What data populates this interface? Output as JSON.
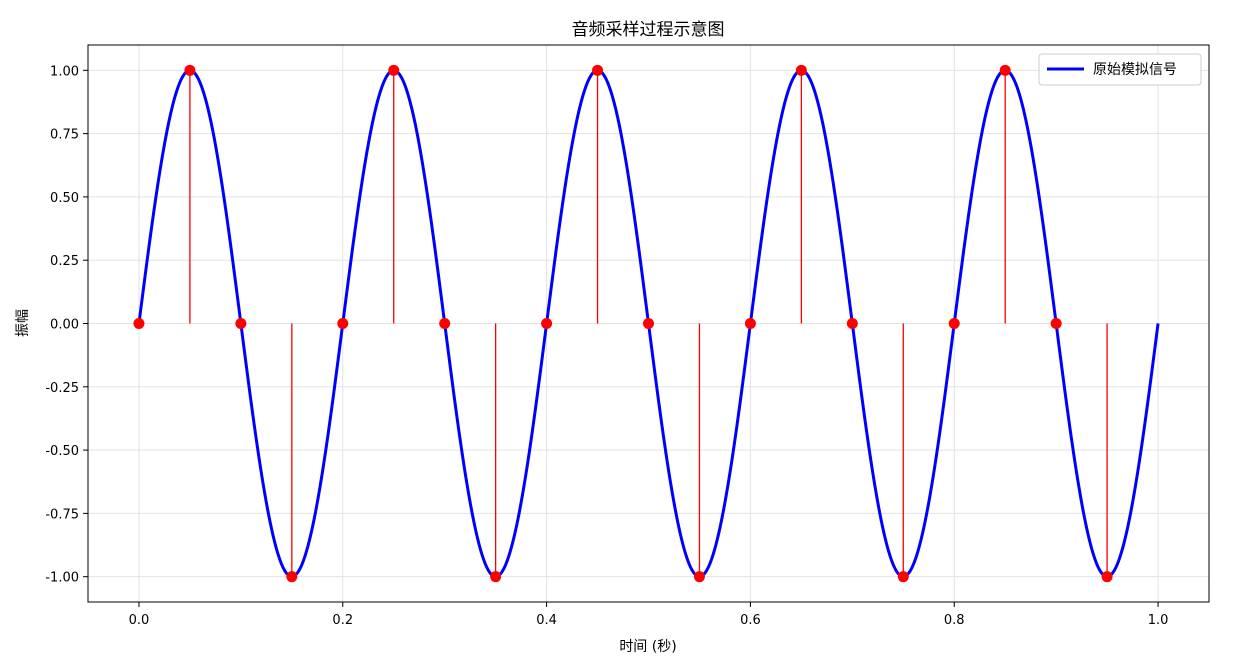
{
  "chart_data": {
    "type": "line",
    "title": "音频采样过程示意图",
    "xlabel": "时间 (秒)",
    "ylabel": "振幅",
    "xlim": [
      -0.05,
      1.05
    ],
    "ylim": [
      -1.1,
      1.1
    ],
    "x_ticks": [
      0.0,
      0.2,
      0.4,
      0.6,
      0.8,
      1.0
    ],
    "x_tick_labels": [
      "0.0",
      "0.2",
      "0.4",
      "0.6",
      "0.8",
      "1.0"
    ],
    "y_ticks": [
      1.0,
      0.75,
      0.5,
      0.25,
      0.0,
      -0.25,
      -0.5,
      -0.75,
      -1.0
    ],
    "y_tick_labels": [
      "1.00",
      "0.75",
      "0.50",
      "0.25",
      "0.00",
      "-0.25",
      "-0.50",
      "-0.75",
      "-1.00"
    ],
    "grid": true,
    "legend_position": "top-right",
    "series": [
      {
        "name": "原始模拟信号",
        "kind": "line",
        "color": "#0000ff",
        "function": "sine",
        "frequency_hz": 5,
        "amplitude": 1.0,
        "x_range": [
          0.0,
          1.0
        ]
      },
      {
        "kind": "stem",
        "color": "#ff0000",
        "x": [
          0.0,
          0.05,
          0.1,
          0.15,
          0.2,
          0.25,
          0.3,
          0.35,
          0.4,
          0.45,
          0.5,
          0.55,
          0.6,
          0.65,
          0.7,
          0.75,
          0.8,
          0.85,
          0.9,
          0.95
        ],
        "y": [
          0,
          1,
          0,
          -1,
          0,
          1,
          0,
          -1,
          0,
          1,
          0,
          -1,
          0,
          1,
          0,
          -1,
          0,
          1,
          0,
          -1
        ]
      }
    ]
  }
}
